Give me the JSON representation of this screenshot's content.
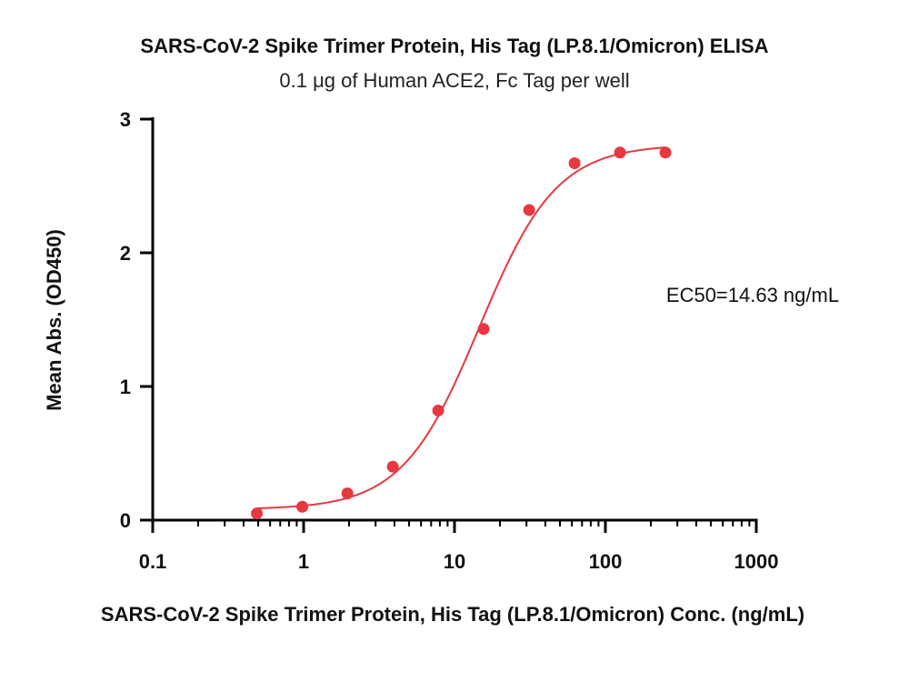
{
  "chart_data": {
    "type": "scatter",
    "title": "SARS-CoV-2 Spike Trimer Protein, His Tag (LP.8.1/Omicron) ELISA",
    "subtitle": "0.1 μg of Human ACE2, Fc Tag per well",
    "xlabel": "SARS-CoV-2 Spike Trimer Protein, His Tag (LP.8.1/Omicron) Conc. (ng/mL)",
    "ylabel": "Mean Abs. (OD450)",
    "x_scale": "log",
    "xlim": [
      0.1,
      1000
    ],
    "ylim": [
      0,
      3
    ],
    "x_ticks": [
      "0.1",
      "1",
      "10",
      "100",
      "1000"
    ],
    "y_ticks": [
      "0",
      "1",
      "2",
      "3"
    ],
    "annotation": "EC50=14.63 ng/mL",
    "color": "#e8373f",
    "grid": false,
    "series": [
      {
        "x": [
          0.49,
          0.98,
          1.95,
          3.9,
          7.8,
          15.6,
          31.25,
          62.5,
          125,
          250
        ],
        "y": [
          0.05,
          0.1,
          0.2,
          0.4,
          0.82,
          1.43,
          2.32,
          2.67,
          2.75,
          2.75
        ]
      }
    ],
    "fit_curve": {
      "model": "4PL",
      "bottom": 0.08,
      "top": 2.81,
      "ec50": 14.63,
      "hill": 1.7,
      "x_range": [
        0.49,
        250
      ]
    }
  }
}
